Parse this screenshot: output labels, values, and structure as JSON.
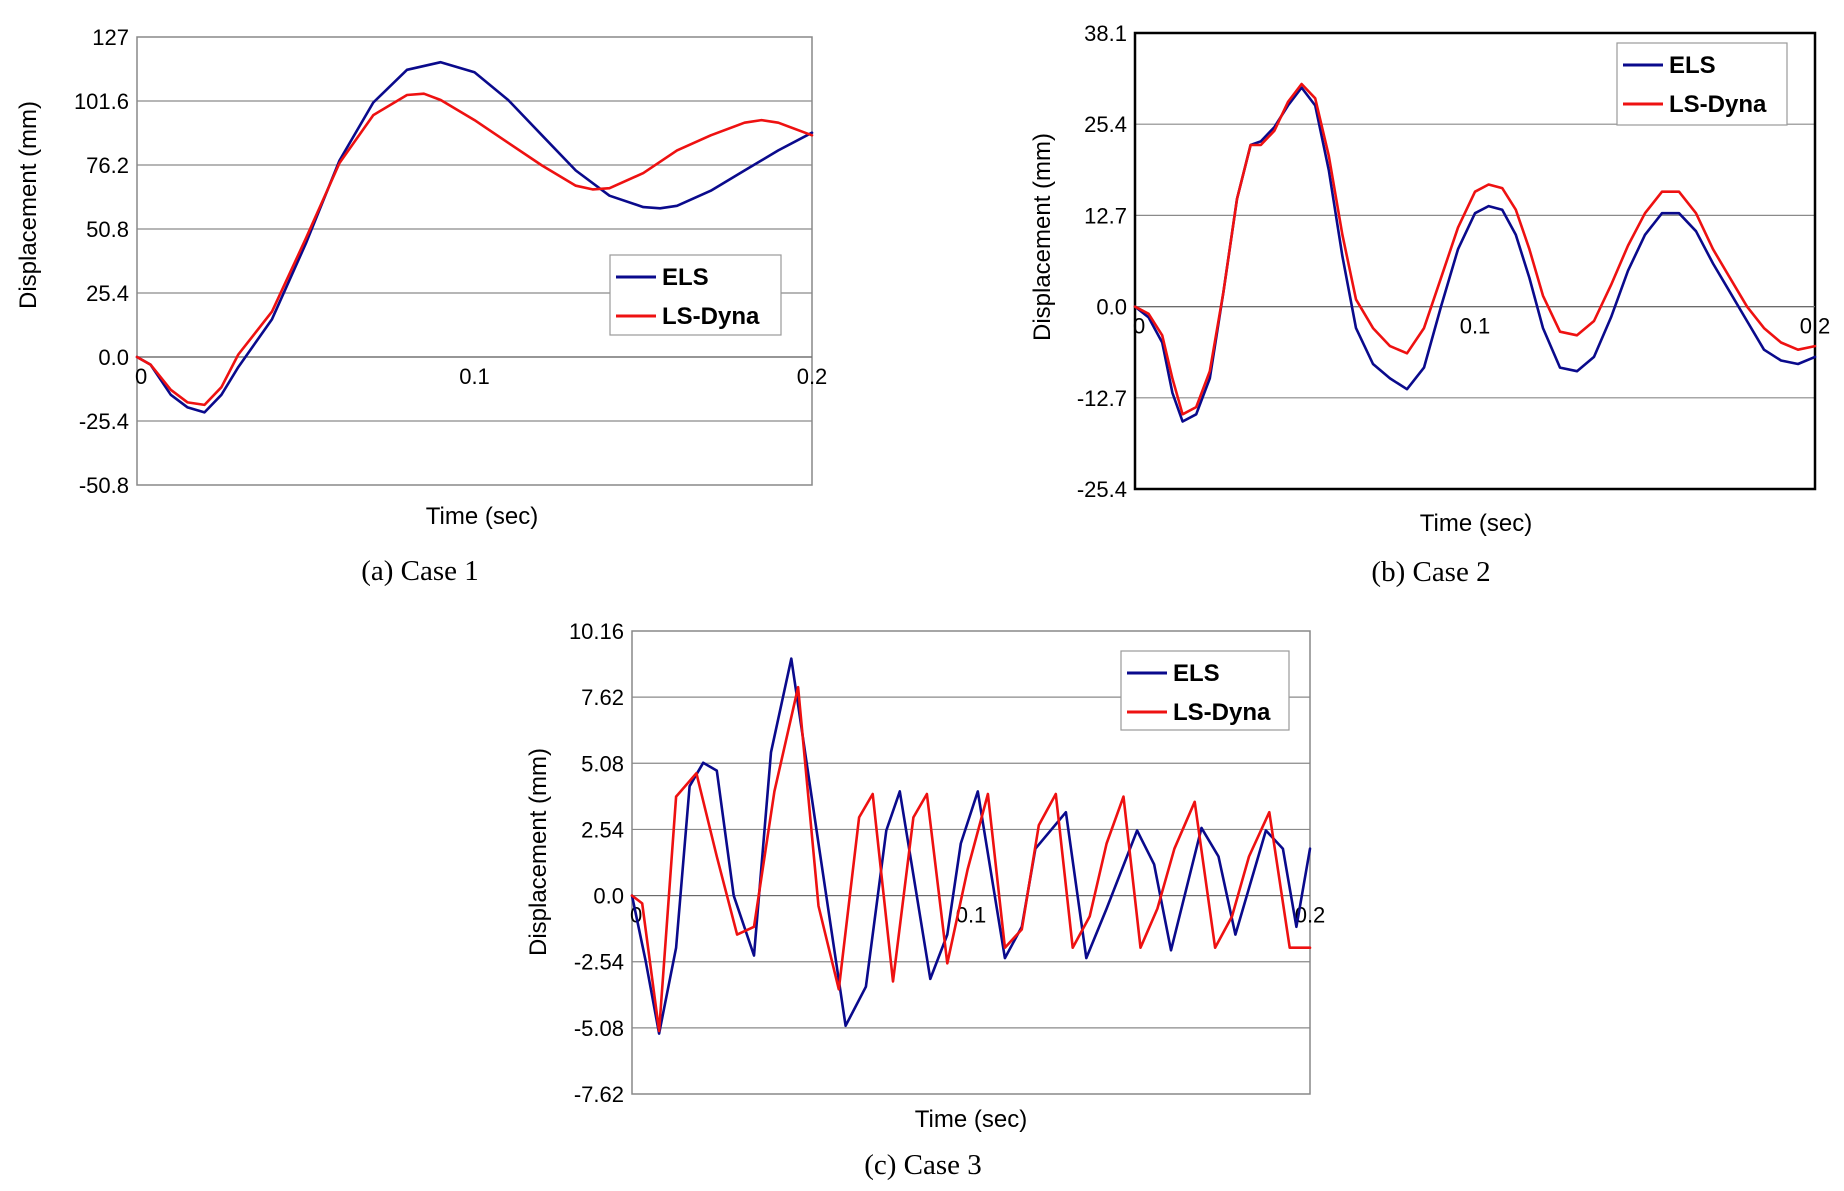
{
  "chart_data": [
    {
      "type": "line",
      "caption": "(a) Case 1",
      "xlabel": "Time (sec)",
      "ylabel": "Displacement (mm)",
      "xlim": [
        0,
        0.2
      ],
      "ylim": [
        -50.8,
        127
      ],
      "xticks": [
        "0",
        "0.1",
        "0.2"
      ],
      "yticks": [
        "127",
        "101.6",
        "76.2",
        "50.8",
        "25.4",
        "0.0",
        "-25.4",
        "-50.8"
      ],
      "grid": true,
      "legend_position": "middle-right",
      "series": [
        {
          "name": "ELS",
          "color": "#0a0a8c",
          "x": [
            0,
            0.004,
            0.01,
            0.015,
            0.02,
            0.025,
            0.03,
            0.04,
            0.05,
            0.06,
            0.07,
            0.08,
            0.09,
            0.1,
            0.11,
            0.12,
            0.13,
            0.14,
            0.15,
            0.155,
            0.16,
            0.17,
            0.18,
            0.19,
            0.2
          ],
          "y": [
            0,
            -3,
            -15,
            -20,
            -22,
            -15,
            -4,
            15,
            45,
            78,
            101,
            114,
            117,
            113,
            102,
            88,
            74,
            64,
            59.5,
            59,
            60,
            66,
            74,
            82,
            89
          ]
        },
        {
          "name": "LS-Dyna",
          "color": "#ee1111",
          "x": [
            0,
            0.004,
            0.01,
            0.015,
            0.02,
            0.025,
            0.03,
            0.04,
            0.05,
            0.06,
            0.07,
            0.08,
            0.085,
            0.09,
            0.1,
            0.11,
            0.12,
            0.13,
            0.135,
            0.14,
            0.15,
            0.16,
            0.17,
            0.18,
            0.185,
            0.19,
            0.2
          ],
          "y": [
            0,
            -3,
            -13,
            -18,
            -19,
            -12,
            1,
            18,
            47,
            77,
            96,
            104,
            104.5,
            102,
            94,
            85,
            76,
            68,
            66.5,
            67,
            73,
            82,
            88,
            93,
            94,
            93,
            88
          ]
        }
      ]
    },
    {
      "type": "line",
      "caption": "(b) Case 2",
      "xlabel": "Time (sec)",
      "ylabel": "Displacement (mm)",
      "xlim": [
        0,
        0.2
      ],
      "ylim": [
        -25.4,
        38.1
      ],
      "xticks": [
        "0",
        "0.1",
        "0.2"
      ],
      "yticks": [
        "38.1",
        "25.4",
        "12.7",
        "0.0",
        "-12.7",
        "-25.4"
      ],
      "grid": true,
      "legend_position": "top-right",
      "series": [
        {
          "name": "ELS",
          "color": "#0a0a8c",
          "x": [
            0,
            0.004,
            0.008,
            0.011,
            0.014,
            0.018,
            0.022,
            0.026,
            0.03,
            0.034,
            0.037,
            0.041,
            0.045,
            0.049,
            0.053,
            0.057,
            0.061,
            0.065,
            0.07,
            0.075,
            0.08,
            0.085,
            0.09,
            0.095,
            0.1,
            0.104,
            0.108,
            0.112,
            0.116,
            0.12,
            0.125,
            0.13,
            0.135,
            0.14,
            0.145,
            0.15,
            0.155,
            0.16,
            0.165,
            0.17,
            0.175,
            0.18,
            0.185,
            0.19,
            0.195,
            0.2
          ],
          "y": [
            0,
            -1.5,
            -5,
            -12,
            -16,
            -15,
            -10,
            2,
            15,
            22.5,
            23,
            25,
            28,
            30.5,
            28,
            19,
            7,
            -3,
            -8,
            -10,
            -11.5,
            -8.5,
            0,
            8,
            13,
            14,
            13.5,
            10,
            4,
            -3,
            -8.5,
            -9,
            -7,
            -1.5,
            5,
            10,
            13,
            13,
            10.5,
            6,
            2,
            -2,
            -6,
            -7.5,
            -8,
            -7
          ]
        },
        {
          "name": "LS-Dyna",
          "color": "#ee1111",
          "x": [
            0,
            0.004,
            0.008,
            0.011,
            0.014,
            0.018,
            0.022,
            0.026,
            0.03,
            0.034,
            0.037,
            0.041,
            0.045,
            0.049,
            0.053,
            0.057,
            0.061,
            0.065,
            0.07,
            0.075,
            0.08,
            0.085,
            0.09,
            0.095,
            0.1,
            0.104,
            0.108,
            0.112,
            0.116,
            0.12,
            0.125,
            0.13,
            0.135,
            0.14,
            0.145,
            0.15,
            0.155,
            0.16,
            0.165,
            0.17,
            0.175,
            0.18,
            0.185,
            0.19,
            0.195,
            0.2
          ],
          "y": [
            0,
            -1,
            -4,
            -10,
            -15,
            -14,
            -9,
            2,
            15,
            22.5,
            22.5,
            24.5,
            28.5,
            31,
            29,
            21,
            10,
            1,
            -3,
            -5.5,
            -6.5,
            -3,
            4,
            11,
            16,
            17,
            16.5,
            13.5,
            8,
            1.5,
            -3.5,
            -4,
            -2,
            3,
            8.5,
            13,
            16,
            16,
            13,
            8,
            4,
            0,
            -3,
            -5,
            -6,
            -5.5
          ]
        }
      ]
    },
    {
      "type": "line",
      "caption": "(c) Case 3",
      "xlabel": "Time (sec)",
      "ylabel": "Displacement (mm)",
      "xlim": [
        0,
        0.2
      ],
      "ylim": [
        -7.62,
        10.16
      ],
      "xticks": [
        "0",
        "0.1",
        "0.2"
      ],
      "yticks": [
        "10.16",
        "7.62",
        "5.08",
        "2.54",
        "0.0",
        "-2.54",
        "-5.08",
        "-7.62"
      ],
      "grid": true,
      "legend_position": "top-right",
      "series": [
        {
          "name": "ELS",
          "color": "#0a0a8c",
          "x": [
            0,
            0.004,
            0.008,
            0.013,
            0.017,
            0.021,
            0.025,
            0.03,
            0.036,
            0.041,
            0.047,
            0.055,
            0.063,
            0.069,
            0.075,
            0.079,
            0.088,
            0.093,
            0.097,
            0.102,
            0.11,
            0.115,
            0.119,
            0.128,
            0.134,
            0.14,
            0.149,
            0.154,
            0.159,
            0.168,
            0.173,
            0.178,
            0.187,
            0.192,
            0.196,
            0.2
          ],
          "y": [
            0,
            -2.5,
            -5.3,
            -2,
            4.2,
            5.1,
            4.8,
            0,
            -2.3,
            5.5,
            9.1,
            2,
            -5,
            -3.5,
            2.5,
            4,
            -3.2,
            -1.5,
            2,
            4,
            -2.4,
            -1.2,
            1.8,
            3.2,
            -2.4,
            -0.5,
            2.5,
            1.2,
            -2.1,
            2.6,
            1.5,
            -1.5,
            2.5,
            1.8,
            -1.2,
            1.8
          ]
        },
        {
          "name": "LS-Dyna",
          "color": "#ee1111",
          "x": [
            0,
            0.003,
            0.008,
            0.013,
            0.019,
            0.025,
            0.031,
            0.036,
            0.042,
            0.049,
            0.055,
            0.061,
            0.067,
            0.071,
            0.077,
            0.083,
            0.087,
            0.093,
            0.099,
            0.105,
            0.11,
            0.115,
            0.12,
            0.125,
            0.13,
            0.135,
            0.14,
            0.145,
            0.15,
            0.155,
            0.16,
            0.166,
            0.172,
            0.177,
            0.182,
            0.188,
            0.194,
            0.2
          ],
          "y": [
            0,
            -0.3,
            -5.2,
            3.8,
            4.7,
            1.5,
            -1.5,
            -1.2,
            4,
            8,
            -0.4,
            -3.6,
            3,
            3.9,
            -3.3,
            3,
            3.9,
            -2.6,
            1,
            3.9,
            -2,
            -1.3,
            2.7,
            3.9,
            -2,
            -0.8,
            2,
            3.8,
            -2,
            -0.5,
            1.8,
            3.6,
            -2,
            -0.8,
            1.5,
            3.2,
            -2,
            -2
          ]
        }
      ]
    }
  ]
}
